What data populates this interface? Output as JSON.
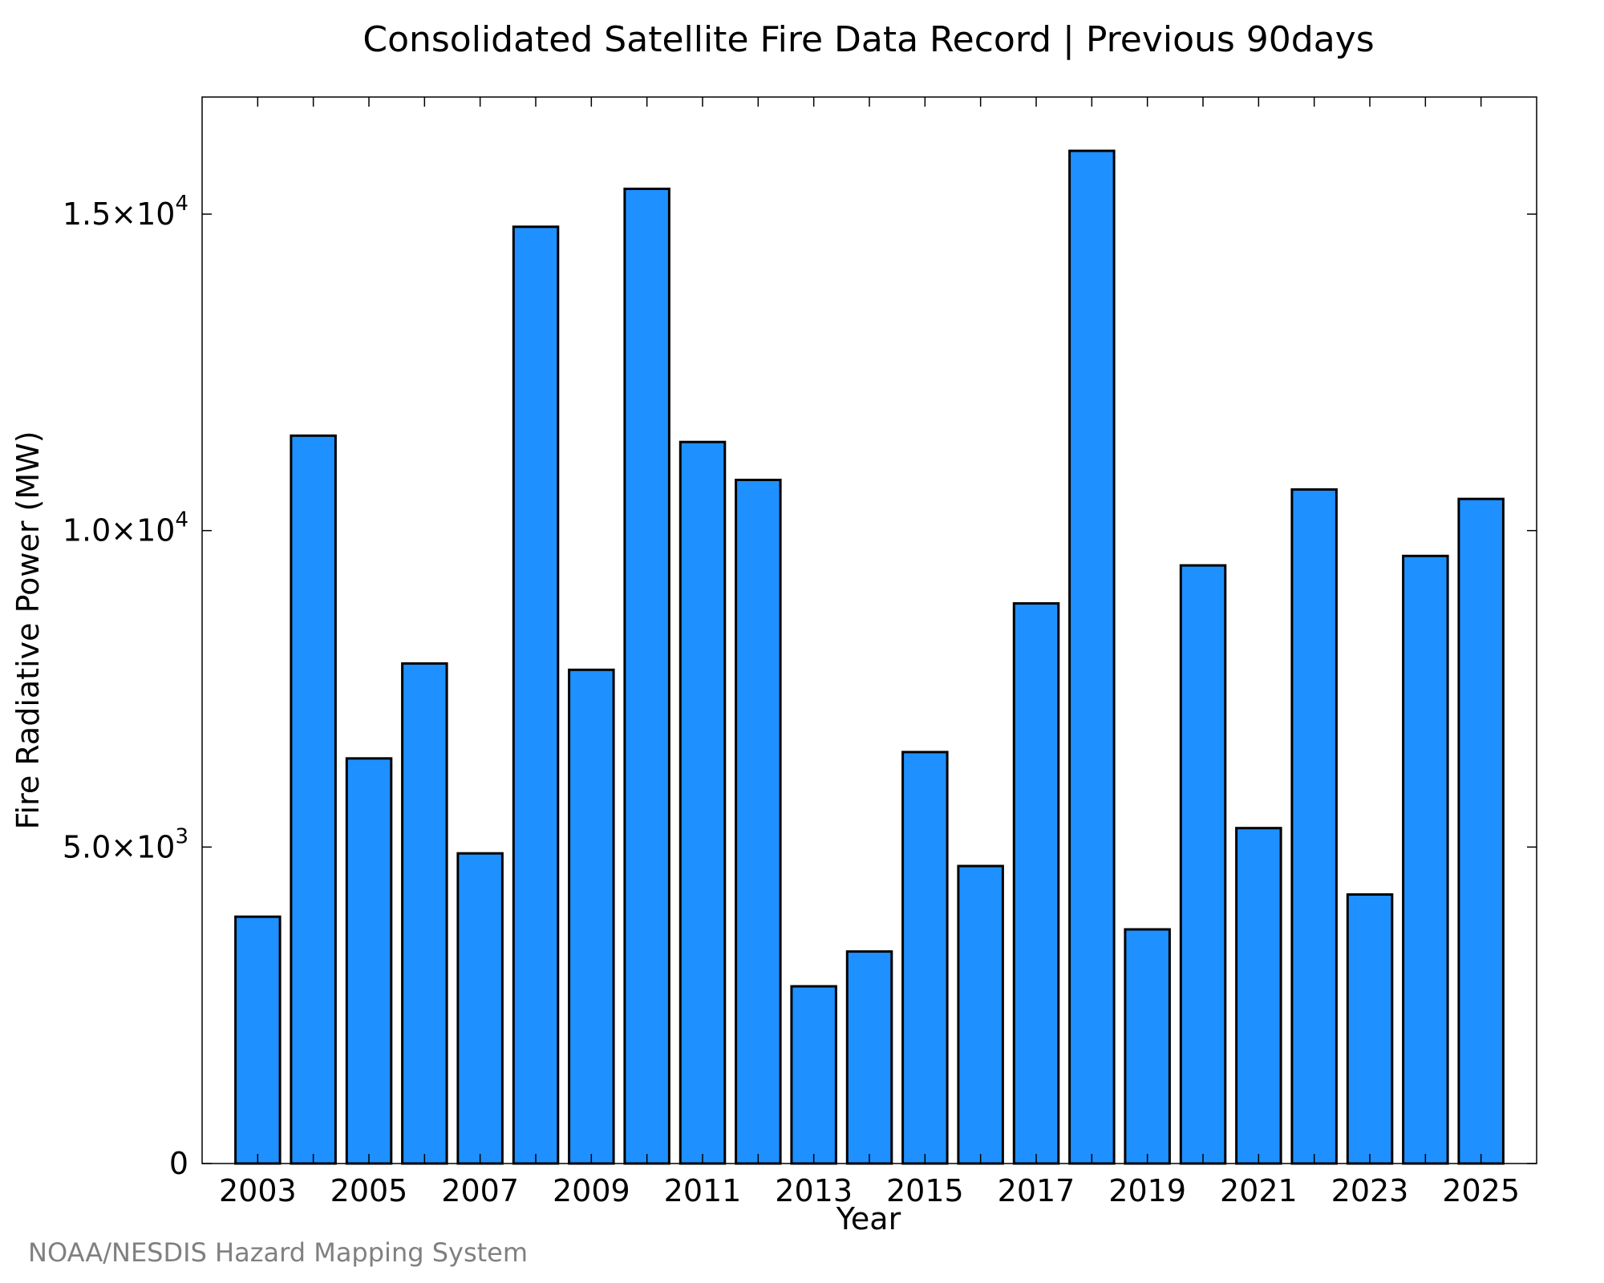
{
  "chart_data": {
    "type": "bar",
    "title": "Consolidated Satellite Fire Data Record | Previous 90days",
    "xlabel": "Year",
    "ylabel": "Fire Radiative Power (MW)",
    "categories": [
      "2003",
      "2004",
      "2005",
      "2006",
      "2007",
      "2008",
      "2009",
      "2010",
      "2011",
      "2012",
      "2013",
      "2014",
      "2015",
      "2016",
      "2017",
      "2018",
      "2019",
      "2020",
      "2021",
      "2022",
      "2023",
      "2024",
      "2025"
    ],
    "values": [
      3900,
      11500,
      6400,
      7900,
      4900,
      14800,
      7800,
      15400,
      11400,
      10800,
      2800,
      3350,
      6500,
      4700,
      8850,
      16000,
      3700,
      9450,
      5300,
      10650,
      4250,
      9600,
      10500
    ],
    "x_tick_labels": [
      "2003",
      "2005",
      "2007",
      "2009",
      "2011",
      "2013",
      "2015",
      "2017",
      "2019",
      "2021",
      "2023",
      "2025"
    ],
    "y_ticks": [
      {
        "value": 0,
        "mantissa": "0",
        "exponent": ""
      },
      {
        "value": 5000,
        "mantissa": "5.0×10",
        "exponent": "3"
      },
      {
        "value": 10000,
        "mantissa": "1.0×10",
        "exponent": "4"
      },
      {
        "value": 15000,
        "mantissa": "1.5×10",
        "exponent": "4"
      }
    ],
    "ylim": [
      0,
      16850
    ],
    "xlim": [
      2002,
      2026
    ],
    "bar_color": "#1E90FF",
    "grid": false,
    "legend": "none"
  },
  "footer": {
    "credit": "NOAA/NESDIS Hazard Mapping System"
  }
}
